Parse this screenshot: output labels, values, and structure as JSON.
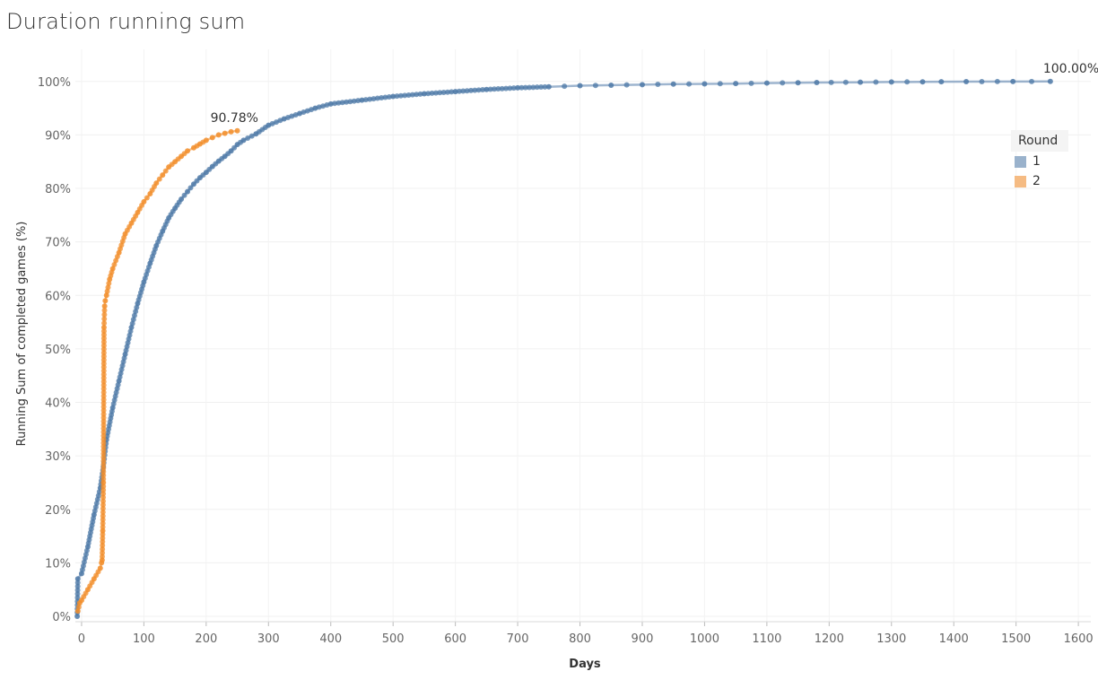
{
  "title": "Duration running sum",
  "chart_data": {
    "type": "line",
    "title": "Duration running sum",
    "xlabel": "Days",
    "ylabel": "Running Sum of completed games (%)",
    "xlim": [
      -10,
      1620
    ],
    "ylim": [
      -1,
      106
    ],
    "x_ticks": [
      "0",
      "100",
      "200",
      "300",
      "400",
      "500",
      "600",
      "700",
      "800",
      "900",
      "1000",
      "1100",
      "1200",
      "1300",
      "1400",
      "1500",
      "1600"
    ],
    "y_ticks": [
      "0%",
      "10%",
      "20%",
      "30%",
      "40%",
      "50%",
      "60%",
      "70%",
      "80%",
      "90%",
      "100%"
    ],
    "grid": true,
    "legend": {
      "title": "Round",
      "position": "right",
      "entries": [
        "1",
        "2"
      ]
    },
    "series": [
      {
        "name": "1",
        "color": "#4e79a7",
        "x": [
          -7,
          -6,
          0,
          10,
          20,
          30,
          35,
          40,
          50,
          60,
          70,
          80,
          90,
          100,
          110,
          120,
          130,
          140,
          150,
          160,
          170,
          180,
          190,
          200,
          210,
          220,
          230,
          240,
          250,
          260,
          280,
          300,
          325,
          350,
          375,
          400,
          450,
          500,
          550,
          600,
          650,
          700,
          750,
          800,
          850,
          900,
          950,
          1000,
          1050,
          1100,
          1150,
          1180,
          1250,
          1300,
          1350,
          1380,
          1420,
          1495,
          1555
        ],
        "y": [
          0,
          7,
          8,
          13,
          19,
          24,
          28,
          33,
          39,
          44,
          49,
          54,
          58.5,
          62.5,
          66,
          69.3,
          72,
          74.5,
          76.3,
          78,
          79.4,
          80.8,
          82,
          83,
          84.1,
          85.1,
          86,
          87,
          88.2,
          89,
          90.2,
          91.8,
          93,
          94,
          95,
          95.8,
          96.5,
          97.2,
          97.7,
          98.1,
          98.5,
          98.8,
          99.0,
          99.2,
          99.3,
          99.4,
          99.5,
          99.55,
          99.6,
          99.7,
          99.75,
          99.8,
          99.85,
          99.9,
          99.92,
          99.94,
          99.96,
          99.98,
          100
        ]
      },
      {
        "name": "2",
        "color": "#f28e2b",
        "x": [
          -6,
          -3,
          0,
          10,
          20,
          30,
          32,
          33,
          34,
          35,
          36,
          37,
          38,
          40,
          45,
          50,
          60,
          70,
          80,
          90,
          100,
          110,
          120,
          130,
          140,
          150,
          160,
          170,
          180,
          190,
          200,
          210,
          220,
          230,
          240,
          250
        ],
        "y": [
          1,
          2.5,
          3,
          5,
          7,
          9,
          10,
          10.5,
          16,
          25,
          54,
          58,
          59,
          60,
          63,
          65,
          68,
          71.5,
          73.5,
          75.5,
          77.5,
          79,
          81,
          82.5,
          84,
          85,
          86,
          87,
          87.6,
          88.3,
          89,
          89.5,
          90,
          90.3,
          90.6,
          90.78
        ]
      }
    ],
    "annotations": [
      {
        "series": "1",
        "x": 1555,
        "y": 100,
        "text": "100.00%"
      },
      {
        "series": "2",
        "x": 250,
        "y": 90.78,
        "text": "90.78%"
      }
    ]
  }
}
